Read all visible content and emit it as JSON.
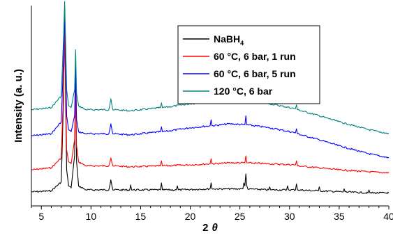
{
  "chart_data": {
    "type": "line",
    "title": "",
    "xlabel": "2 θ",
    "xlabel_prefix": "2",
    "xlabel_symbol": "θ",
    "ylabel": "Intensity (a. u.)",
    "xlim": [
      4,
      40
    ],
    "ylim": [
      0,
      1
    ],
    "x_ticks": [
      5,
      10,
      15,
      20,
      25,
      30,
      35,
      40
    ],
    "x_tick_labels": [
      "5",
      "10",
      "15",
      "20",
      "25",
      "30",
      "35",
      "40"
    ],
    "y_ticks_shown": false,
    "grid": false,
    "legend_position": "top-right",
    "series": [
      {
        "name": "NaBH4",
        "name_base": "NaBH",
        "name_sub": "4",
        "color": "#000000",
        "x": [
          4.0,
          6.0,
          7.0,
          7.25,
          7.35,
          7.45,
          7.55,
          7.75,
          8.0,
          8.35,
          8.45,
          8.55,
          8.75,
          9.5,
          11.8,
          12.0,
          12.2,
          13.9,
          14.0,
          14.1,
          17.0,
          17.1,
          17.2,
          18.6,
          18.7,
          18.8,
          22.0,
          22.1,
          22.2,
          25.3,
          25.4,
          25.5,
          25.6,
          25.7,
          25.8,
          27.9,
          28.0,
          28.1,
          29.7,
          29.8,
          29.9,
          30.6,
          30.7,
          30.8,
          32.9,
          33.0,
          33.1,
          35.4,
          35.5,
          35.6,
          37.9,
          38.0,
          38.1,
          40.0
        ],
        "y": [
          0.07,
          0.075,
          0.12,
          0.55,
          0.97,
          0.5,
          0.18,
          0.1,
          0.09,
          0.25,
          0.64,
          0.22,
          0.1,
          0.08,
          0.08,
          0.13,
          0.08,
          0.08,
          0.105,
          0.08,
          0.08,
          0.115,
          0.08,
          0.08,
          0.1,
          0.08,
          0.085,
          0.115,
          0.085,
          0.085,
          0.115,
          0.1,
          0.16,
          0.1,
          0.085,
          0.08,
          0.095,
          0.08,
          0.08,
          0.1,
          0.08,
          0.08,
          0.11,
          0.08,
          0.075,
          0.095,
          0.075,
          0.07,
          0.085,
          0.07,
          0.065,
          0.08,
          0.065,
          0.065
        ]
      },
      {
        "name": "60 °C, 6 bar, 1 run",
        "color": "#ff0000",
        "x": [
          4.0,
          6.0,
          7.0,
          7.25,
          7.35,
          7.45,
          7.55,
          7.75,
          8.0,
          8.35,
          8.45,
          8.55,
          8.75,
          9.5,
          11.8,
          12.0,
          12.2,
          14.0,
          17.0,
          17.1,
          17.2,
          20.0,
          22.0,
          22.1,
          22.2,
          24.0,
          25.5,
          25.6,
          25.7,
          28.0,
          30.6,
          30.7,
          30.8,
          33.0,
          35.0,
          38.0,
          40.0
        ],
        "y": [
          0.18,
          0.19,
          0.24,
          0.6,
          0.92,
          0.55,
          0.28,
          0.22,
          0.21,
          0.33,
          0.58,
          0.3,
          0.22,
          0.2,
          0.2,
          0.24,
          0.2,
          0.195,
          0.2,
          0.225,
          0.2,
          0.205,
          0.21,
          0.235,
          0.21,
          0.215,
          0.215,
          0.25,
          0.215,
          0.21,
          0.205,
          0.225,
          0.2,
          0.19,
          0.18,
          0.17,
          0.165
        ]
      },
      {
        "name": "60 °C, 6 bar, 5 run",
        "color": "#0000ff",
        "x": [
          4.0,
          6.0,
          7.0,
          7.25,
          7.35,
          7.45,
          7.55,
          7.75,
          8.0,
          8.35,
          8.45,
          8.55,
          8.75,
          9.5,
          11.8,
          12.0,
          12.2,
          14.0,
          17.0,
          17.1,
          17.2,
          20.0,
          22.0,
          22.1,
          22.2,
          24.0,
          25.5,
          25.6,
          25.7,
          28.0,
          30.6,
          30.7,
          30.8,
          33.0,
          35.0,
          38.0,
          40.0
        ],
        "y": [
          0.35,
          0.36,
          0.42,
          0.75,
          0.99,
          0.7,
          0.45,
          0.38,
          0.37,
          0.45,
          0.7,
          0.43,
          0.37,
          0.36,
          0.36,
          0.41,
          0.36,
          0.355,
          0.37,
          0.395,
          0.37,
          0.39,
          0.4,
          0.43,
          0.4,
          0.41,
          0.405,
          0.45,
          0.405,
          0.39,
          0.365,
          0.385,
          0.36,
          0.33,
          0.3,
          0.26,
          0.24
        ]
      },
      {
        "name": "120 °C, 6 bar",
        "color": "#008080",
        "x": [
          4.0,
          6.0,
          7.0,
          7.25,
          7.35,
          7.45,
          7.55,
          7.75,
          8.0,
          8.35,
          8.45,
          8.55,
          8.75,
          9.5,
          11.8,
          12.0,
          12.2,
          14.0,
          17.0,
          17.1,
          17.2,
          20.0,
          22.0,
          22.1,
          22.2,
          24.0,
          25.5,
          25.6,
          25.7,
          28.0,
          30.6,
          30.7,
          30.8,
          33.0,
          35.0,
          38.0,
          40.0
        ],
        "y": [
          0.48,
          0.49,
          0.55,
          0.85,
          1.02,
          0.8,
          0.58,
          0.5,
          0.49,
          0.58,
          0.78,
          0.56,
          0.5,
          0.48,
          0.48,
          0.535,
          0.48,
          0.475,
          0.49,
          0.515,
          0.49,
          0.51,
          0.52,
          0.55,
          0.52,
          0.53,
          0.525,
          0.57,
          0.525,
          0.51,
          0.485,
          0.505,
          0.48,
          0.45,
          0.42,
          0.38,
          0.36
        ]
      }
    ]
  }
}
